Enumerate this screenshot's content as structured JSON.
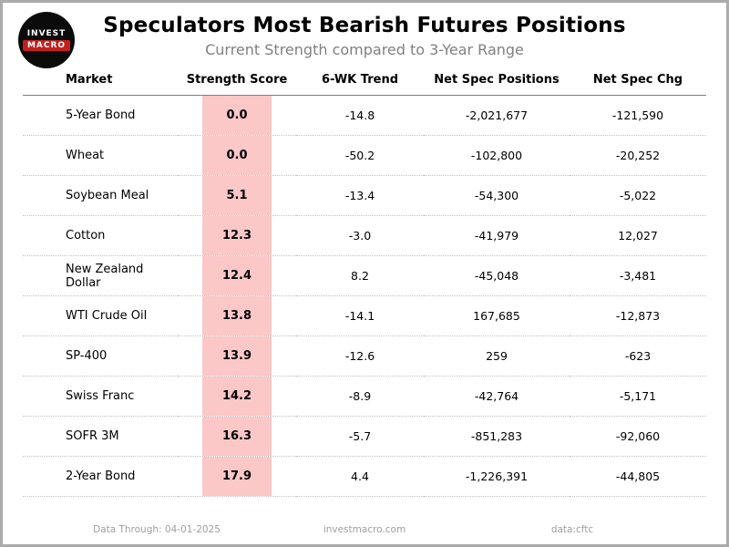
{
  "header": {
    "logo_line1": "INVEST",
    "logo_line2": "MACRO"
  },
  "chart_data": {
    "type": "table",
    "title": "Speculators Most Bearish Futures Positions",
    "subtitle": "Current Strength compared to 3-Year Range",
    "columns": [
      "Market",
      "Strength Score",
      "6-WK Trend",
      "Net Spec Positions",
      "Net Spec Chg"
    ],
    "rows": [
      [
        "5-Year Bond",
        "0.0",
        "-14.8",
        "-2,021,677",
        "-121,590"
      ],
      [
        "Wheat",
        "0.0",
        "-50.2",
        "-102,800",
        "-20,252"
      ],
      [
        "Soybean Meal",
        "5.1",
        "-13.4",
        "-54,300",
        "-5,022"
      ],
      [
        "Cotton",
        "12.3",
        "-3.0",
        "-41,979",
        "12,027"
      ],
      [
        "New Zealand Dollar",
        "12.4",
        "8.2",
        "-45,048",
        "-3,481"
      ],
      [
        "WTI Crude Oil",
        "13.8",
        "-14.1",
        "167,685",
        "-12,873"
      ],
      [
        "SP-400",
        "13.9",
        "-12.6",
        "259",
        "-623"
      ],
      [
        "Swiss Franc",
        "14.2",
        "-8.9",
        "-42,764",
        "-5,171"
      ],
      [
        "SOFR 3M",
        "16.3",
        "-5.7",
        "-851,283",
        "-92,060"
      ],
      [
        "2-Year Bond",
        "17.9",
        "4.4",
        "-1,226,391",
        "-44,805"
      ]
    ],
    "highlight_column": "Strength Score",
    "highlight_color": "#fbc7c7",
    "layout": {
      "grid": "dotted-row-separators",
      "header_rule": "solid"
    }
  },
  "footer": {
    "data_through": "Data Through: 04-01-2025",
    "site": "investmacro.com",
    "source": "data:cftc"
  },
  "colors": {
    "score_band": "#fbc7c7",
    "logo_red": "#c22020",
    "subtitle_gray": "#808080",
    "footer_gray": "#9e9e9e"
  }
}
